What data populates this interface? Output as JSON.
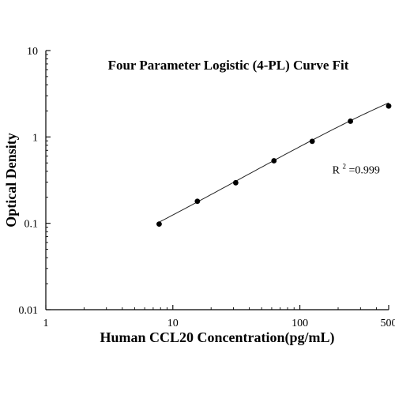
{
  "chart_data": {
    "type": "scatter",
    "title": "Four Parameter Logistic (4-PL) Curve Fit",
    "xlabel": "Human CCL20 Concentration(pg/mL)",
    "ylabel": "Optical Density",
    "xscale": "log",
    "yscale": "log",
    "xlim": [
      1,
      500
    ],
    "ylim": [
      0.01,
      10
    ],
    "x_ticks": [
      {
        "value": 1,
        "label": "1"
      },
      {
        "value": 10,
        "label": "10"
      },
      {
        "value": 100,
        "label": "100"
      },
      {
        "value": 500,
        "label": "500"
      }
    ],
    "y_ticks": [
      {
        "value": 0.01,
        "label": "0.01"
      },
      {
        "value": 0.1,
        "label": "0.1"
      },
      {
        "value": 1,
        "label": "1"
      },
      {
        "value": 10,
        "label": "10"
      }
    ],
    "grid": false,
    "legend": "none",
    "annotation": {
      "r_label": "R",
      "superscript": "2",
      "value_text": "=0.999",
      "x": 180,
      "y": 0.38
    },
    "series": [
      {
        "points": [
          {
            "x": 7.8,
            "y": 0.098
          },
          {
            "x": 15.6,
            "y": 0.18
          },
          {
            "x": 31.25,
            "y": 0.295
          },
          {
            "x": 62.5,
            "y": 0.53
          },
          {
            "x": 125,
            "y": 0.89
          },
          {
            "x": 250,
            "y": 1.52
          },
          {
            "x": 500,
            "y": 2.28
          }
        ]
      }
    ],
    "fit_curve": {
      "model": "4-PL",
      "A": 0.01,
      "B": 0.85,
      "C": 2000,
      "D": 10.5,
      "x_range": [
        7.8,
        500
      ]
    }
  }
}
